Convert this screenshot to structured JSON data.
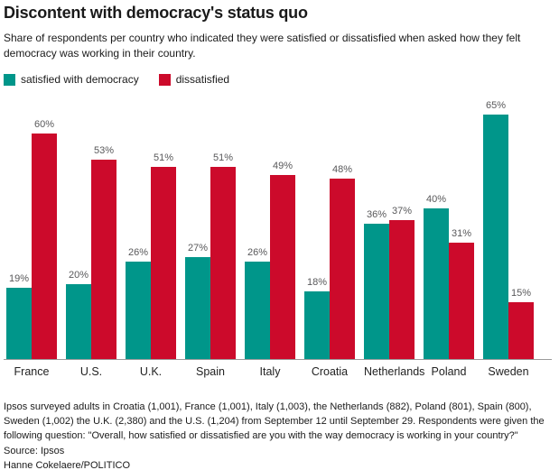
{
  "header": {
    "title": "Discontent with democracy's status quo",
    "subtitle": "Share of respondents per country who indicated they were satisfied or dissatisfied when asked how they felt democracy was working in their country."
  },
  "colors": {
    "satisfied": "#00968A",
    "dissatisfied": "#CC0A2B",
    "axis": "#9B9B9B",
    "value_label": "#58585A"
  },
  "chart_data": {
    "type": "bar",
    "categories": [
      "France",
      "U.S.",
      "U.K.",
      "Spain",
      "Italy",
      "Croatia",
      "Netherlands",
      "Poland",
      "Sweden"
    ],
    "series": [
      {
        "name": "satisfied with democracy",
        "color": "#00968A",
        "values": [
          19,
          20,
          26,
          27,
          26,
          18,
          36,
          40,
          65
        ]
      },
      {
        "name": "dissatisfied",
        "color": "#CC0A2B",
        "values": [
          60,
          53,
          51,
          51,
          49,
          48,
          37,
          31,
          15
        ]
      }
    ],
    "value_suffix": "%",
    "data_labels": true,
    "ylim": [
      0,
      65
    ],
    "grid": false,
    "y_axis_visible": false,
    "legend_position": "top-left",
    "title": "Discontent with democracy's status quo",
    "xlabel": "",
    "ylabel": ""
  },
  "footer": {
    "note": "Ipsos surveyed adults in Croatia (1,001), France (1,001), Italy (1,003), the Netherlands (882), Poland (801), Spain (800), Sweden (1,002) the U.K. (2,380) and the U.S. (1,204) from September 12 until September 29. Respondents were given the following question: \"Overall, how satisfied or dissatisfied are you with the way democracy is working in your country?\"",
    "source": "Source: Ipsos",
    "byline": "Hanne Cokelaere/POLITICO"
  }
}
